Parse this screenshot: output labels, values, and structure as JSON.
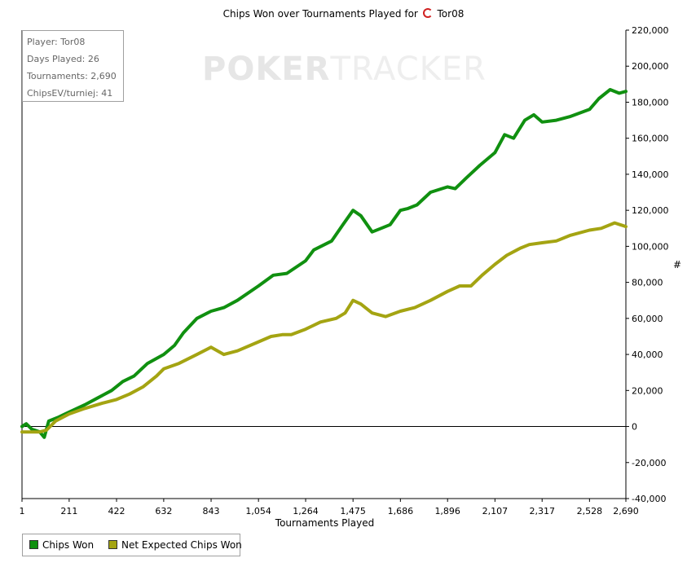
{
  "title": "Chips Won over Tournaments Played for",
  "title_player": "Tor08",
  "watermark": {
    "bold": "POKER",
    "thin": "TRACKER"
  },
  "info_box": [
    "Player: Tor08",
    "Days Played: 26",
    "Tournaments: 2,690",
    "ChipsEV/turniej: 41"
  ],
  "legend": [
    {
      "label": "Chips Won",
      "color": "#109010"
    },
    {
      "label": "Net Expected Chips Won",
      "color": "#a4a412"
    }
  ],
  "chart_data": {
    "type": "line",
    "title": "Chips Won over Tournaments Played for Tor08",
    "xlabel": "Tournaments Played",
    "ylabel": "#",
    "xlim": [
      1,
      2690
    ],
    "ylim": [
      -40000,
      220000
    ],
    "x_ticks": [
      1,
      211,
      422,
      632,
      843,
      1054,
      1264,
      1475,
      1686,
      1896,
      2107,
      2317,
      2528,
      2690
    ],
    "x_tick_labels": [
      "1",
      "211",
      "422",
      "632",
      "843",
      "1,054",
      "1,264",
      "1,475",
      "1,686",
      "1,896",
      "2,107",
      "2,317",
      "2,528",
      "2,690"
    ],
    "y_ticks": [
      -40000,
      -20000,
      0,
      20000,
      40000,
      60000,
      80000,
      100000,
      120000,
      140000,
      160000,
      180000,
      200000,
      220000
    ],
    "y_tick_labels": [
      "-40,000",
      "-20,000",
      "0",
      "20,000",
      "40,000",
      "60,000",
      "80,000",
      "100,000",
      "120,000",
      "140,000",
      "160,000",
      "180,000",
      "200,000",
      "220,000"
    ],
    "legend_position": "bottom-left",
    "series": [
      {
        "name": "Chips Won",
        "color": "#109010",
        "points": [
          [
            1,
            0
          ],
          [
            20,
            1500
          ],
          [
            45,
            -1500
          ],
          [
            80,
            -3000
          ],
          [
            100,
            -6000
          ],
          [
            120,
            3000
          ],
          [
            160,
            5000
          ],
          [
            211,
            8000
          ],
          [
            280,
            12000
          ],
          [
            340,
            16000
          ],
          [
            400,
            20000
          ],
          [
            450,
            25000
          ],
          [
            500,
            28000
          ],
          [
            560,
            35000
          ],
          [
            632,
            40000
          ],
          [
            680,
            45000
          ],
          [
            720,
            52000
          ],
          [
            780,
            60000
          ],
          [
            843,
            64000
          ],
          [
            900,
            66000
          ],
          [
            960,
            70000
          ],
          [
            1054,
            78000
          ],
          [
            1120,
            84000
          ],
          [
            1180,
            85000
          ],
          [
            1264,
            92000
          ],
          [
            1300,
            98000
          ],
          [
            1380,
            103000
          ],
          [
            1430,
            112000
          ],
          [
            1475,
            120000
          ],
          [
            1510,
            117000
          ],
          [
            1560,
            108000
          ],
          [
            1600,
            110000
          ],
          [
            1640,
            112000
          ],
          [
            1686,
            120000
          ],
          [
            1720,
            121000
          ],
          [
            1760,
            123000
          ],
          [
            1820,
            130000
          ],
          [
            1896,
            133000
          ],
          [
            1930,
            132000
          ],
          [
            1980,
            138000
          ],
          [
            2040,
            145000
          ],
          [
            2107,
            152000
          ],
          [
            2150,
            162000
          ],
          [
            2190,
            160000
          ],
          [
            2240,
            170000
          ],
          [
            2280,
            173000
          ],
          [
            2317,
            169000
          ],
          [
            2380,
            170000
          ],
          [
            2440,
            172000
          ],
          [
            2528,
            176000
          ],
          [
            2570,
            182000
          ],
          [
            2620,
            187000
          ],
          [
            2660,
            185000
          ],
          [
            2690,
            186000
          ]
        ]
      },
      {
        "name": "Net Expected Chips Won",
        "color": "#a4a412",
        "points": [
          [
            1,
            -3000
          ],
          [
            40,
            -3000
          ],
          [
            80,
            -3000
          ],
          [
            110,
            -2000
          ],
          [
            150,
            3000
          ],
          [
            211,
            7000
          ],
          [
            280,
            10000
          ],
          [
            360,
            13000
          ],
          [
            422,
            15000
          ],
          [
            480,
            18000
          ],
          [
            540,
            22000
          ],
          [
            600,
            28000
          ],
          [
            632,
            32000
          ],
          [
            700,
            35000
          ],
          [
            780,
            40000
          ],
          [
            843,
            44000
          ],
          [
            900,
            40000
          ],
          [
            960,
            42000
          ],
          [
            1054,
            47000
          ],
          [
            1110,
            50000
          ],
          [
            1160,
            51000
          ],
          [
            1200,
            51000
          ],
          [
            1264,
            54000
          ],
          [
            1330,
            58000
          ],
          [
            1400,
            60000
          ],
          [
            1440,
            63000
          ],
          [
            1475,
            70000
          ],
          [
            1510,
            68000
          ],
          [
            1560,
            63000
          ],
          [
            1620,
            61000
          ],
          [
            1686,
            64000
          ],
          [
            1750,
            66000
          ],
          [
            1820,
            70000
          ],
          [
            1896,
            75000
          ],
          [
            1950,
            78000
          ],
          [
            2000,
            78000
          ],
          [
            2050,
            84000
          ],
          [
            2107,
            90000
          ],
          [
            2160,
            95000
          ],
          [
            2220,
            99000
          ],
          [
            2260,
            101000
          ],
          [
            2317,
            102000
          ],
          [
            2380,
            103000
          ],
          [
            2440,
            106000
          ],
          [
            2528,
            109000
          ],
          [
            2580,
            110000
          ],
          [
            2640,
            113000
          ],
          [
            2690,
            111000
          ]
        ]
      }
    ]
  }
}
